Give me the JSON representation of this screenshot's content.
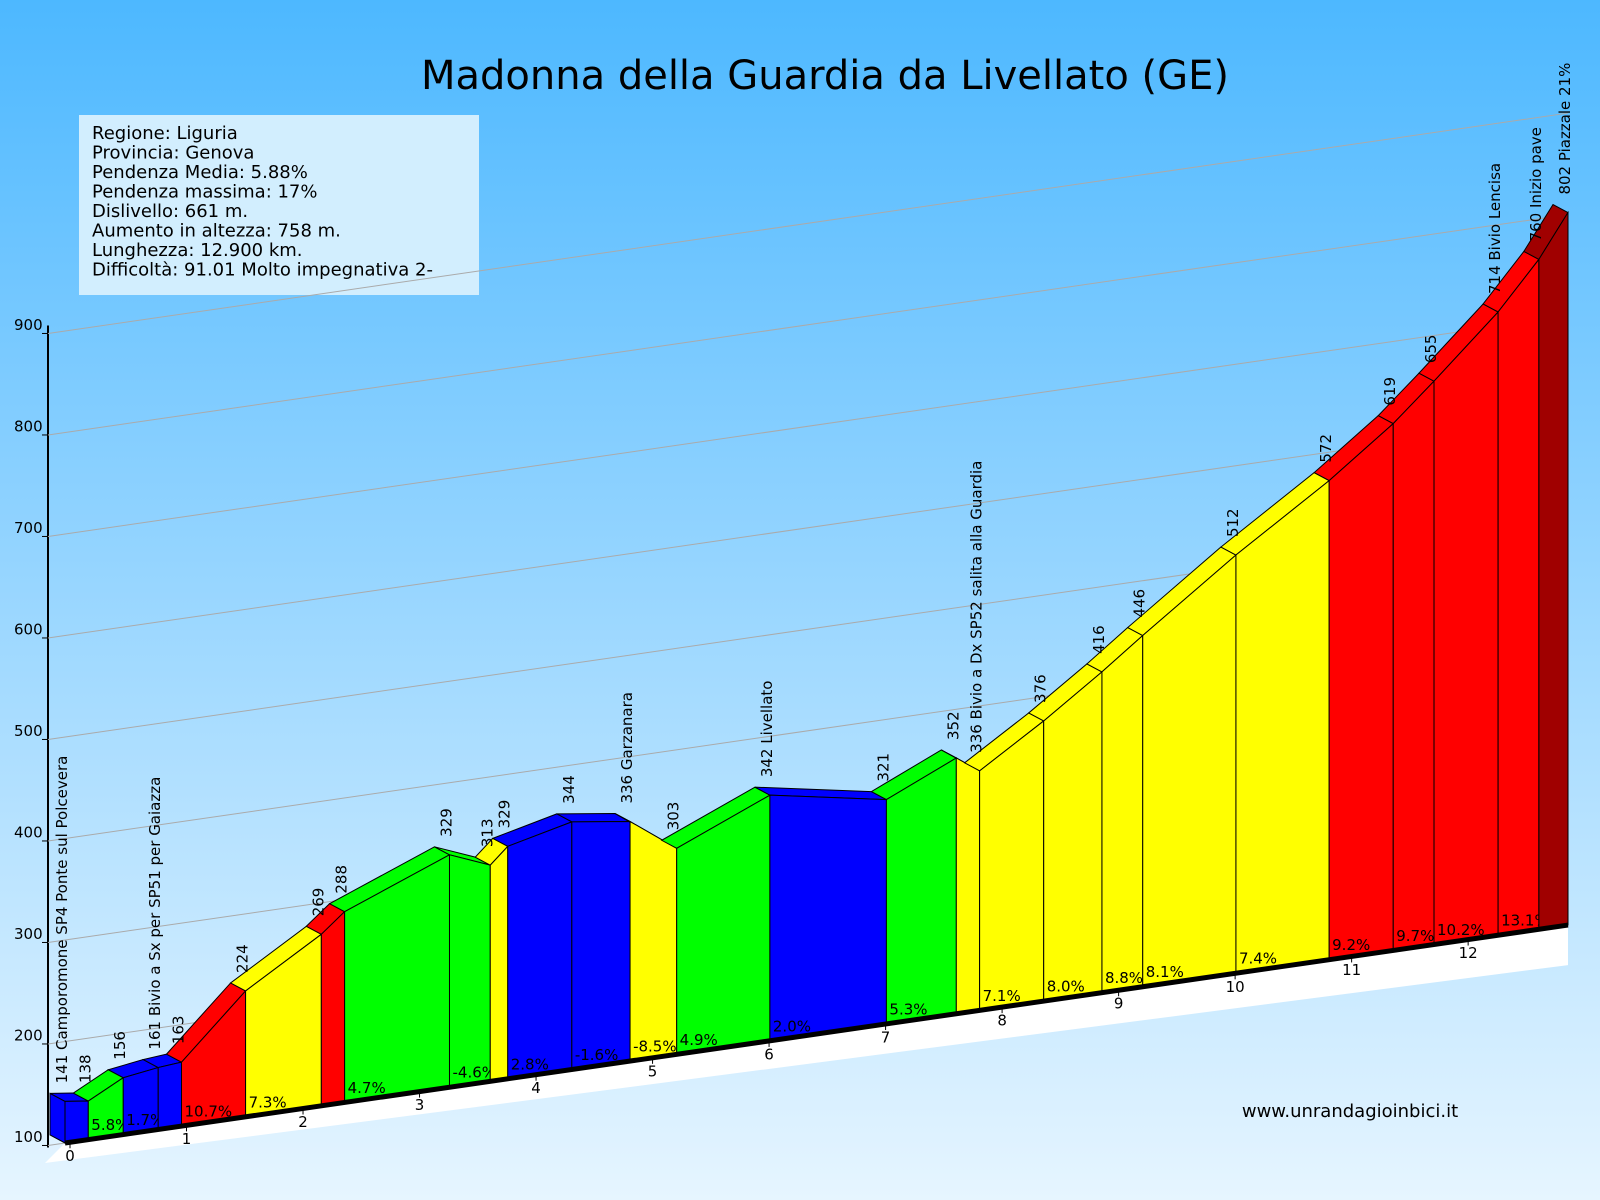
{
  "chart_data": {
    "type": "profile",
    "title": "Madonna della Guardia da Livellato (GE)",
    "info": [
      "Regione: Liguria",
      "Provincia: Genova",
      "Pendenza Media: 5.88%",
      "Pendenza massima: 17%",
      "Dislivello:   661 m.",
      "Aumento in altezza:   758 m.",
      "Lunghezza:  12.900 km.",
      "Difficoltà: 91.01 Molto impegnativa 2-"
    ],
    "source": "www.unrandagioinbici.it",
    "x": [
      0,
      0.2,
      0.5,
      0.8,
      1.0,
      1.55,
      2.2,
      2.4,
      3.3,
      3.65,
      3.8,
      4.35,
      4.85,
      5.25,
      6.05,
      7.05,
      7.65,
      7.85,
      8.4,
      8.9,
      9.25,
      10.05,
      10.85,
      11.4,
      11.75,
      12.3,
      12.65,
      12.9
    ],
    "elevations": [
      141,
      138,
      156,
      161,
      163,
      224,
      269,
      288,
      329,
      313,
      329,
      344,
      336,
      303,
      342,
      321,
      352,
      336,
      376,
      416,
      446,
      512,
      572,
      619,
      655,
      714,
      760,
      802
    ],
    "point_labels": [
      "141 Camporomone SP4 Ponte sul Polcevera",
      "138",
      "156",
      "161 Bivio a Sx per SP51 per Gaiazza",
      "163",
      "224",
      "269",
      "288",
      "329",
      "313",
      "329",
      "344",
      "336 Garzanara",
      "303",
      "342 Livellato",
      "321",
      "352",
      "336 Bivio a Dx SP52 salita alla Guardia",
      "376",
      "416",
      "446",
      "512",
      "572",
      "619",
      "655",
      "714 Bivio Lencisa",
      "760 Inizio pave",
      "802 Piazzale 21%"
    ],
    "segment_colors": [
      "#0000ff",
      "#00ff00",
      "#0000ff",
      "#0000ff",
      "#ff0000",
      "#ffff00",
      "#ff0000",
      "#00ff00",
      "#00ff00",
      "#ffff00",
      "#0000ff",
      "#0000ff",
      "#ffff00",
      "#00ff00",
      "#0000ff",
      "#00ff00",
      "#ffff00",
      "#ffff00",
      "#ffff00",
      "#ffff00",
      "#ffff00",
      "#ffff00",
      "#ff0000",
      "#ff0000",
      "#ff0000",
      "#ff0000",
      "#a00000"
    ],
    "grade_labels": [
      null,
      "5.8%",
      "1.7%",
      null,
      "10.7%",
      "7.3%",
      null,
      "4.7%",
      "-4.6%",
      null,
      "2.8%",
      "-1.6%",
      "-8.5%",
      "4.9%",
      "2.0%",
      "5.3%",
      null,
      "7.1%",
      "8.0%",
      "8.8%",
      "8.1%",
      "7.4%",
      "9.2%",
      "9.7%",
      "10.2%",
      "13.1%",
      null
    ],
    "xlim": [
      0,
      12.9
    ],
    "xticks": [
      0,
      1,
      2,
      3,
      4,
      5,
      6,
      7,
      8,
      9,
      10,
      11,
      12
    ],
    "ylim": [
      100,
      900
    ],
    "yticks": [
      100,
      200,
      300,
      400,
      500,
      600,
      700,
      800,
      900
    ],
    "grid": true
  }
}
